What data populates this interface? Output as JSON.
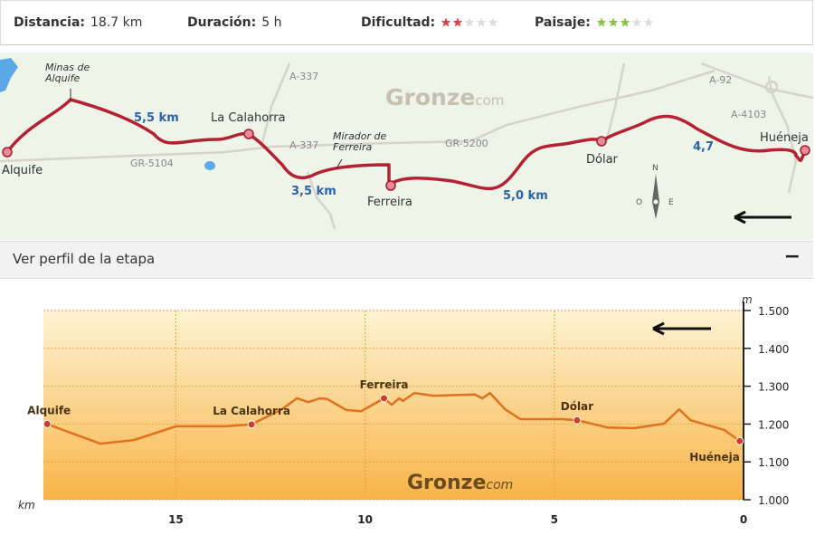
{
  "top": {
    "distancia": {
      "label": "Distancia:",
      "value": "18.7 km"
    },
    "duracion": {
      "label": "Duración:",
      "value": "5 h"
    },
    "dificultad": {
      "label": "Dificultad:",
      "rating": 2,
      "max": 5,
      "color": "#d9434b"
    },
    "paisaje": {
      "label": "Paisaje:",
      "rating": 3,
      "max": 5,
      "color": "#86c540"
    }
  },
  "map": {
    "minas": [
      "Minas de",
      "Alquife"
    ],
    "mirador": [
      "Mirador de",
      "Ferreira"
    ],
    "towns": [
      "Alquife",
      "La Calahorra",
      "Ferreira",
      "Dólar",
      "Huéneja"
    ],
    "distances": [
      "5,5 km",
      "3,5 km",
      "5,0 km",
      "4,7"
    ],
    "roads": [
      "A-337",
      "A-337",
      "GR-5104",
      "GR-5200",
      "A-92",
      "A-4103"
    ],
    "brand": "Gronze",
    "brand_suffix": "com",
    "compass": [
      "N",
      "O",
      "E"
    ]
  },
  "section": {
    "title": "Ver perfil de la etapa",
    "toggle": "−"
  },
  "chart_data": {
    "type": "line",
    "brand": "Gronze",
    "brand_suffix": "com",
    "xlabel": "km",
    "ylabel": "m",
    "color": "#e0711f",
    "x": [
      18.4,
      17.0,
      16.1,
      15.0,
      13.7,
      13.0,
      12.2,
      11.8,
      11.5,
      11.2,
      11.0,
      10.5,
      10.1,
      9.8,
      9.5,
      9.3,
      9.1,
      9.0,
      8.7,
      8.2,
      7.1,
      6.9,
      6.7,
      6.3,
      5.9,
      5.3,
      4.8,
      4.4,
      3.6,
      2.9,
      2.1,
      1.7,
      1.4,
      0.5,
      0.1
    ],
    "values": [
      1200,
      1148,
      1158,
      1194,
      1194,
      1199,
      1239,
      1268,
      1258,
      1268,
      1266,
      1237,
      1234,
      1251,
      1268,
      1251,
      1268,
      1261,
      1282,
      1275,
      1278,
      1268,
      1282,
      1239,
      1213,
      1213,
      1213,
      1210,
      1191,
      1189,
      1201,
      1239,
      1210,
      1184,
      1155
    ],
    "waypoints": {
      "names": [
        "Alquife",
        "La Calahorra",
        "Ferreira",
        "Dólar",
        "Huéneja"
      ],
      "x": [
        18.4,
        13.0,
        9.5,
        4.4,
        0.1
      ],
      "values": [
        1200,
        1199,
        1268,
        1210,
        1155
      ],
      "color": "#d23a2a"
    },
    "xlim": [
      18.5,
      0
    ],
    "xticks": [
      15,
      10,
      5,
      0
    ],
    "ylim": [
      1000,
      1500
    ],
    "yticks": [
      {
        "value": 1000,
        "label": "1.000"
      },
      {
        "value": 1100,
        "label": "1.100"
      },
      {
        "value": 1200,
        "label": "1.200"
      },
      {
        "value": 1300,
        "label": "1.300"
      },
      {
        "value": 1400,
        "label": "1.400"
      },
      {
        "value": 1500,
        "label": "1.500"
      }
    ],
    "grid": true
  }
}
